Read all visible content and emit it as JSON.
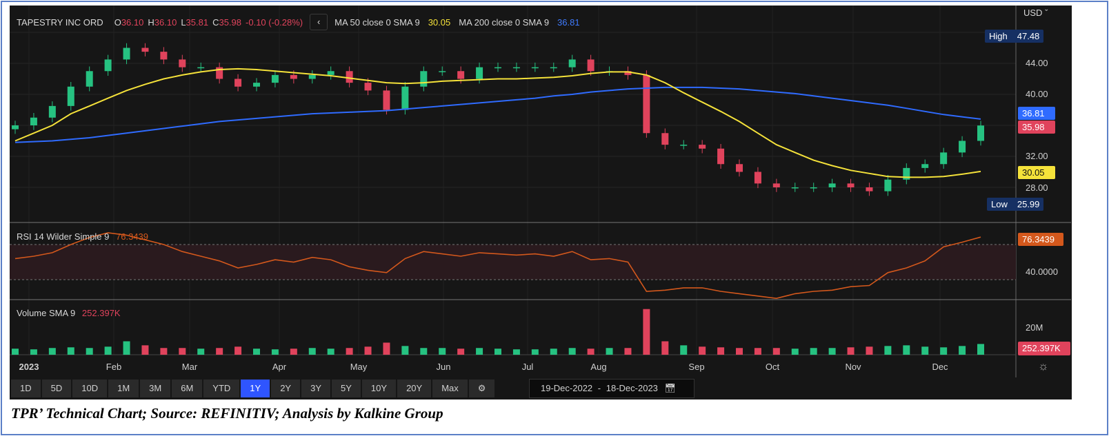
{
  "header": {
    "symbol": "TAPESTRY INC ORD",
    "open_label": "O",
    "open": "36.10",
    "high_label": "H",
    "high": "36.10",
    "low_label": "L",
    "low": "35.81",
    "close_label": "C",
    "close": "35.98",
    "change": "-0.10 (-0.28%)",
    "collapse_icon": "chevron-left-icon",
    "ma50_label": "MA 50 close 0 SMA 9",
    "ma50_value": "30.05",
    "ma200_label": "MA 200 close 0 SMA 9",
    "ma200_value": "36.81"
  },
  "currency": "USD",
  "price_axis": {
    "ticks": [
      "44.00",
      "40.00",
      "32.00",
      "28.00"
    ],
    "high_label": "High",
    "high_value": "47.48",
    "low_label": "Low",
    "low_value": "25.99",
    "ma200_tag": "36.81",
    "close_tag": "35.98",
    "ma50_tag": "30.05"
  },
  "rsi": {
    "label": "RSI 14 Wilder Simple 9",
    "value": "76.3439",
    "tick": "40.0000"
  },
  "volume": {
    "label": "Volume SMA 9",
    "value": "252.397K",
    "tick": "20M"
  },
  "months": [
    "2023",
    "Feb",
    "Mar",
    "Apr",
    "May",
    "Jun",
    "Jul",
    "Aug",
    "Sep",
    "Oct",
    "Nov",
    "Dec"
  ],
  "periods": [
    "1D",
    "5D",
    "10D",
    "1M",
    "3M",
    "6M",
    "YTD",
    "1Y",
    "2Y",
    "3Y",
    "5Y",
    "10Y",
    "20Y",
    "Max"
  ],
  "active_period": "1Y",
  "date_range": {
    "from": "19-Dec-2022",
    "sep": "-",
    "to": "18-Dec-2023"
  },
  "caption": "TPR’ Technical Chart; Source: REFINITIV; Analysis by Kalkine Group",
  "colors": {
    "up": "#26c281",
    "down": "#e0435c",
    "ma50": "#f5e23a",
    "ma200": "#2f6bff",
    "rsi": "#d4581c",
    "active": "#2f55ff"
  },
  "chart_data": {
    "type": "candlestick",
    "title": "TAPESTRY INC ORD",
    "ylim": [
      24,
      49
    ],
    "x": [
      "2022-12-19",
      "2022-12-26",
      "2023-01-02",
      "2023-01-09",
      "2023-01-16",
      "2023-01-23",
      "2023-01-30",
      "2023-02-06",
      "2023-02-13",
      "2023-02-20",
      "2023-02-27",
      "2023-03-06",
      "2023-03-13",
      "2023-03-20",
      "2023-03-27",
      "2023-04-03",
      "2023-04-10",
      "2023-04-17",
      "2023-04-24",
      "2023-05-01",
      "2023-05-08",
      "2023-05-15",
      "2023-05-22",
      "2023-05-29",
      "2023-06-05",
      "2023-06-12",
      "2023-06-19",
      "2023-06-26",
      "2023-07-03",
      "2023-07-10",
      "2023-07-17",
      "2023-07-24",
      "2023-07-31",
      "2023-08-07",
      "2023-08-14",
      "2023-08-21",
      "2023-08-28",
      "2023-09-04",
      "2023-09-11",
      "2023-09-18",
      "2023-09-25",
      "2023-10-02",
      "2023-10-09",
      "2023-10-16",
      "2023-10-23",
      "2023-10-30",
      "2023-11-06",
      "2023-11-13",
      "2023-11-20",
      "2023-11-27",
      "2023-12-04",
      "2023-12-11",
      "2023-12-18"
    ],
    "close": [
      36,
      37,
      38.5,
      41,
      43,
      44.5,
      46,
      45.5,
      44.5,
      43.5,
      43.5,
      42,
      41,
      41.5,
      42.5,
      42,
      42.5,
      43,
      41.5,
      40.5,
      38,
      41,
      43,
      43,
      42,
      43.5,
      43.5,
      43.5,
      43.5,
      43.5,
      44.5,
      43,
      43,
      42.5,
      35,
      33.5,
      33.5,
      33,
      31,
      30,
      28.5,
      28,
      28,
      28,
      28.5,
      28,
      27.5,
      29,
      30.5,
      31,
      32.5,
      34,
      35.98
    ],
    "series": [
      {
        "name": "MA 50 close 0 SMA 9",
        "values": [
          34,
          35,
          36,
          37.5,
          38.5,
          39.5,
          40.5,
          41.3,
          42,
          42.5,
          42.9,
          43.2,
          43.3,
          43.2,
          43,
          42.8,
          42.6,
          42.4,
          42.1,
          41.8,
          41.5,
          41.4,
          41.5,
          41.7,
          41.8,
          41.9,
          42,
          42,
          42.1,
          42.2,
          42.4,
          42.7,
          42.9,
          42.9,
          42.5,
          41.5,
          40.2,
          39,
          37.8,
          36.5,
          35,
          33.5,
          32.5,
          31.5,
          30.8,
          30.2,
          29.8,
          29.4,
          29.3,
          29.3,
          29.4,
          29.7,
          30.05
        ]
      },
      {
        "name": "MA 200 close 0 SMA 9",
        "values": [
          33.8,
          33.9,
          34,
          34.2,
          34.4,
          34.7,
          35,
          35.3,
          35.6,
          35.9,
          36.2,
          36.5,
          36.7,
          36.9,
          37.1,
          37.3,
          37.5,
          37.6,
          37.7,
          37.8,
          37.9,
          38.1,
          38.3,
          38.5,
          38.7,
          38.9,
          39.1,
          39.3,
          39.5,
          39.8,
          40,
          40.3,
          40.5,
          40.7,
          40.8,
          40.9,
          40.9,
          40.9,
          40.8,
          40.7,
          40.5,
          40.3,
          40.1,
          39.8,
          39.5,
          39.2,
          38.9,
          38.6,
          38.2,
          37.8,
          37.4,
          37.1,
          36.81
        ]
      }
    ],
    "rsi": {
      "ylim": [
        23,
        89
      ],
      "levels": [
        70,
        40
      ],
      "values": [
        58,
        60,
        63,
        70,
        76,
        80,
        78,
        74,
        70,
        64,
        60,
        56,
        50,
        53,
        57,
        55,
        59,
        57,
        51,
        48,
        46,
        58,
        64,
        62,
        60,
        63,
        62,
        61,
        62,
        60,
        64,
        57,
        58,
        55,
        30,
        31,
        33,
        33,
        30,
        28,
        26,
        24,
        28,
        30,
        31,
        34,
        35,
        46,
        50,
        56,
        68,
        72,
        76.34
      ]
    },
    "volume_millions": [
      4.5,
      4,
      5,
      5.5,
      5,
      6,
      10,
      7,
      5,
      5,
      4.5,
      5,
      6,
      4.5,
      4,
      4.5,
      5,
      4.5,
      5,
      6,
      9,
      6.5,
      5,
      5,
      4.5,
      5,
      4.5,
      4,
      4,
      4.5,
      5,
      4.5,
      5,
      5,
      34,
      10,
      7,
      6,
      5.5,
      5,
      5,
      5,
      4.5,
      5,
      5,
      5.5,
      6,
      6.5,
      7,
      6,
      5.5,
      6.5,
      8
    ]
  }
}
